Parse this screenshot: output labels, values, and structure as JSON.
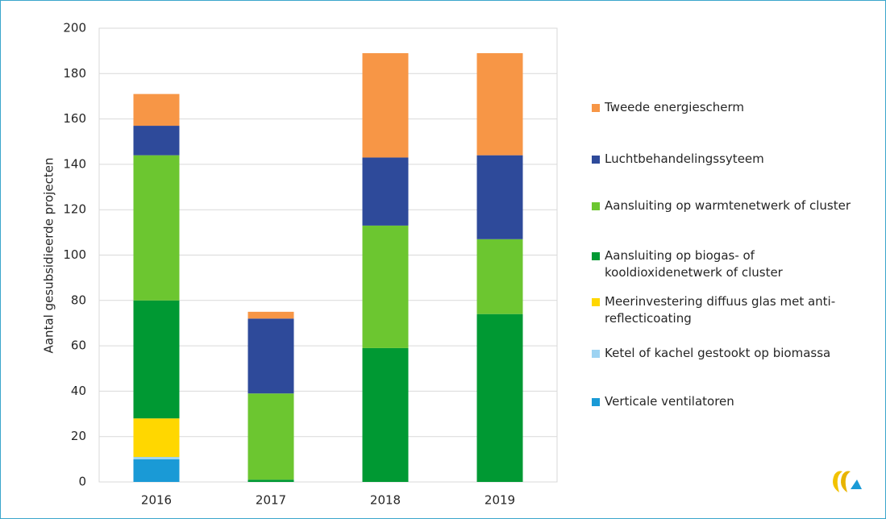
{
  "chart_data": {
    "type": "bar",
    "stacked": true,
    "y_label": "Aantal gesubsidieerde projecten",
    "categories": [
      "2016",
      "2017",
      "2018",
      "2019"
    ],
    "series": [
      {
        "name": "Verticale ventilatoren",
        "color": "#1a9ad6",
        "values": [
          10,
          0,
          0,
          0
        ]
      },
      {
        "name": "Ketel of kachel gestookt op biomassa",
        "color": "#9dd3f2",
        "values": [
          1,
          0,
          0,
          0
        ]
      },
      {
        "name": "Meerinvestering diffuus glas met anti-reflecticoating",
        "color": "#ffd700",
        "values": [
          17,
          0,
          0,
          0
        ]
      },
      {
        "name": "Aansluiting op biogas- of kooldioxidenetwerk of cluster",
        "color": "#009933",
        "values": [
          52,
          1,
          59,
          74
        ]
      },
      {
        "name": "Aansluiting op warmtenetwerk of cluster",
        "color": "#6cc630",
        "values": [
          64,
          38,
          54,
          33
        ]
      },
      {
        "name": "Luchtbehandelingssyteem",
        "color": "#2e4a9a",
        "values": [
          13,
          33,
          30,
          37
        ]
      },
      {
        "name": "Tweede energiescherm",
        "color": "#f79646",
        "values": [
          14,
          3,
          46,
          45
        ]
      }
    ],
    "ylim": [
      0,
      200
    ],
    "yticks": [
      0,
      20,
      40,
      60,
      80,
      100,
      120,
      140,
      160,
      180,
      200
    ],
    "grid": true
  }
}
